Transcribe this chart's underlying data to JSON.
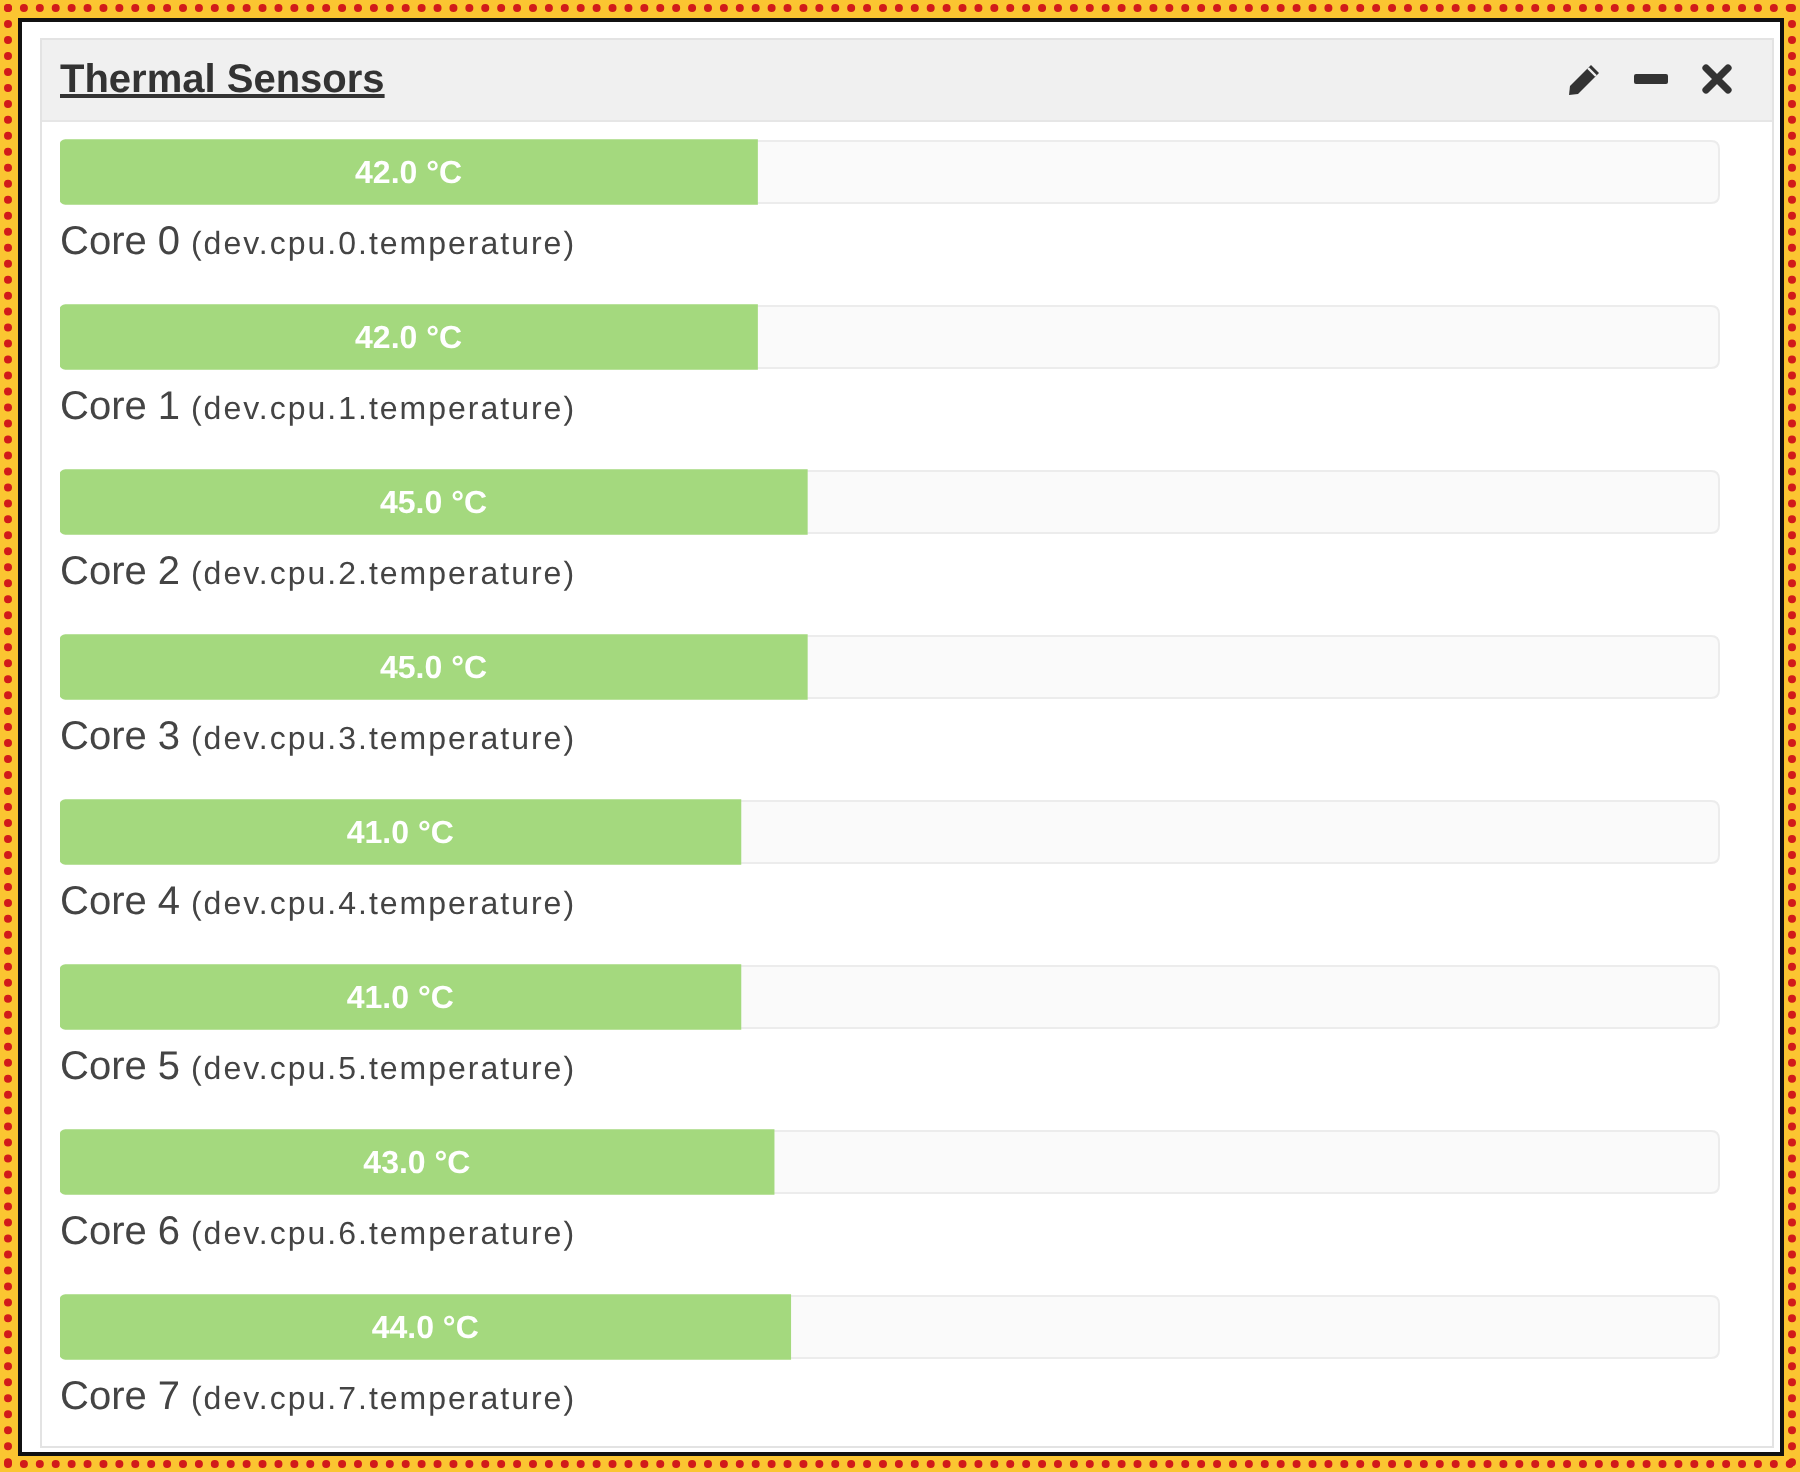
{
  "chart_data": {
    "type": "bar",
    "orientation": "horizontal",
    "title": "Thermal Sensors",
    "categories": [
      "Core 0 (dev.cpu.0.temperature)",
      "Core 1 (dev.cpu.1.temperature)",
      "Core 2 (dev.cpu.2.temperature)",
      "Core 3 (dev.cpu.3.temperature)",
      "Core 4 (dev.cpu.4.temperature)",
      "Core 5 (dev.cpu.5.temperature)",
      "Core 6 (dev.cpu.6.temperature)",
      "Core 7 (dev.cpu.7.temperature)"
    ],
    "values": [
      42,
      42,
      45,
      45,
      41,
      41,
      43,
      44
    ],
    "color": "#a4d97e",
    "value_labels": [
      "42.0 °C",
      "42.0 °C",
      "45.0 °C",
      "45.0 °C",
      "41.0 °C",
      "41.0 °C",
      "43.0 °C",
      "44.0 °C"
    ],
    "xlim": [
      0,
      100
    ],
    "tick_labels": "y"
  }
}
